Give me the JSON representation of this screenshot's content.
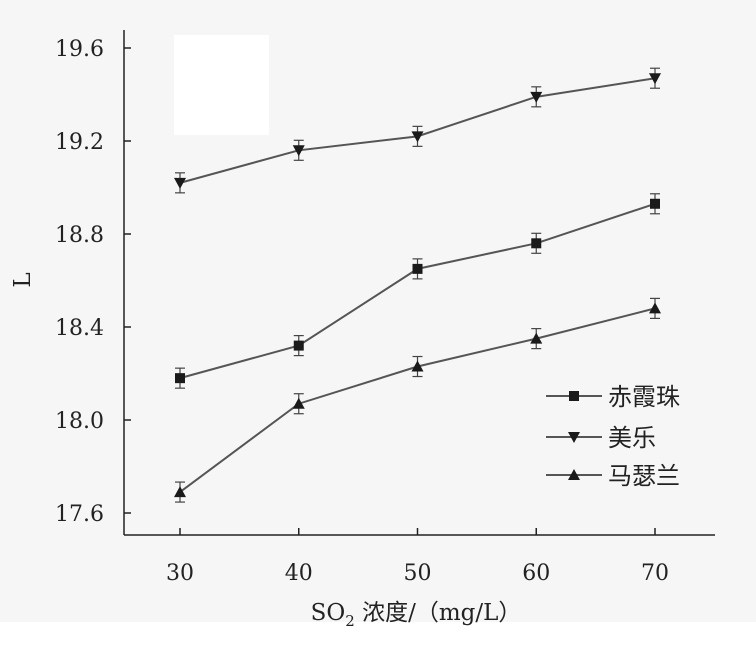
{
  "chart_data": {
    "type": "line",
    "x": [
      30,
      40,
      50,
      60,
      70
    ],
    "xlabel": {
      "prefix": "SO",
      "subscript": "2",
      "suffix": " 浓度/（mg/L）"
    },
    "ylabel": "L",
    "xlim": [
      25,
      75
    ],
    "ylim": [
      17.5,
      19.7
    ],
    "xticks": [
      "30",
      "40",
      "50",
      "60",
      "70"
    ],
    "yticks": [
      "17.6",
      "18.0",
      "18.4",
      "18.8",
      "19.2",
      "19.6"
    ],
    "series": [
      {
        "name": "赤霞珠",
        "marker": "square",
        "values": [
          18.18,
          18.32,
          18.65,
          18.76,
          18.93
        ]
      },
      {
        "name": "美乐",
        "marker": "triangle-down",
        "values": [
          19.02,
          19.16,
          19.22,
          19.39,
          19.47
        ]
      },
      {
        "name": "马瑟兰",
        "marker": "triangle-up",
        "values": [
          17.69,
          18.07,
          18.23,
          18.35,
          18.48
        ]
      }
    ],
    "legend_position": "bottom-right",
    "grid": false,
    "line_color": "#555555",
    "marker_color": "#1a1a1a"
  }
}
